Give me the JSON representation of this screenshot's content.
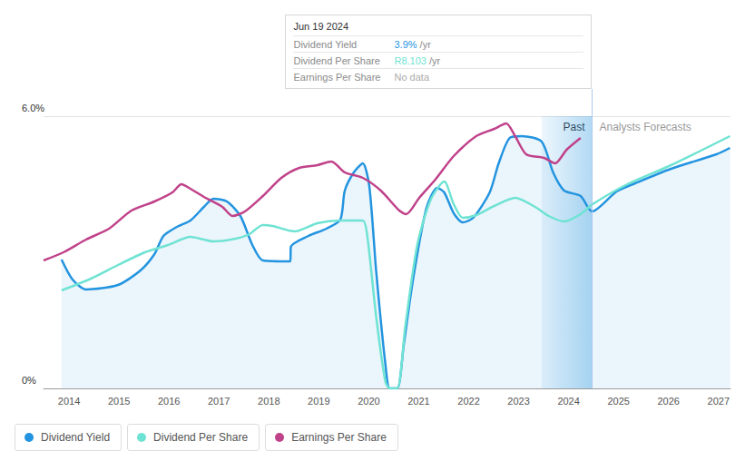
{
  "chart_data": {
    "type": "line",
    "xlim": [
      2013.49,
      2027.24
    ],
    "xticks": [
      2014,
      2015,
      2016,
      2017,
      2018,
      2019,
      2020,
      2021,
      2022,
      2023,
      2024,
      2025,
      2026,
      2027
    ],
    "ylim": [
      0,
      6
    ],
    "yticks": [
      {
        "value": 0,
        "label": "0%"
      },
      {
        "value": 6,
        "label": "6.0%"
      }
    ],
    "y2lim": [
      0,
      12
    ],
    "grid": true,
    "legend": "bottom-left",
    "series": [
      {
        "name": "Dividend Yield",
        "color": "#2394df",
        "x": [
          2013.85,
          2014.07,
          2014.34,
          2014.98,
          2015.43,
          2015.71,
          2015.89,
          2016.16,
          2016.43,
          2016.7,
          2016.89,
          2017.16,
          2017.43,
          2017.67,
          2017.88,
          2018.43,
          2018.44,
          2018.79,
          2019.15,
          2019.43,
          2019.52,
          2019.7,
          2019.88,
          2020.01,
          2020.15,
          2020.33,
          2020.42,
          2020.57,
          2020.7,
          2020.88,
          2021.15,
          2021.37,
          2021.51,
          2021.7,
          2021.88,
          2022.09,
          2022.42,
          2022.6,
          2022.82,
          2023.06,
          2023.46,
          2023.69,
          2023.91,
          2024.24,
          2024.47,
          2024.96,
          2025.33,
          2026.05,
          2026.96,
          2027.23
        ],
        "values": [
          2.84,
          2.4,
          2.18,
          2.28,
          2.6,
          2.96,
          3.36,
          3.56,
          3.7,
          4.0,
          4.18,
          4.12,
          3.8,
          3.16,
          2.82,
          2.8,
          3.12,
          3.36,
          3.52,
          3.72,
          4.36,
          4.76,
          4.96,
          4.46,
          2.56,
          0.56,
          0,
          0,
          0.96,
          2.36,
          3.96,
          4.42,
          4.32,
          3.86,
          3.66,
          3.76,
          4.32,
          4.96,
          5.52,
          5.56,
          5.44,
          4.76,
          4.36,
          4.24,
          3.9,
          4.34,
          4.52,
          4.84,
          5.16,
          5.3
        ]
      },
      {
        "name": "Dividend Per Share",
        "color": "#6fe3d3",
        "axis": "y2",
        "x": [
          2013.85,
          2014.44,
          2014.98,
          2015.52,
          2015.98,
          2016.43,
          2016.89,
          2017.34,
          2017.61,
          2017.88,
          2018.07,
          2018.52,
          2018.97,
          2019.43,
          2019.88,
          2019.97,
          2020.15,
          2020.33,
          2020.42,
          2020.57,
          2020.73,
          2020.97,
          2021.24,
          2021.51,
          2021.7,
          2021.88,
          2022.15,
          2022.51,
          2022.93,
          2023.33,
          2023.6,
          2023.91,
          2024.24,
          2024.47,
          2025.14,
          2026.05,
          2027.23
        ],
        "values": [
          4.32,
          4.84,
          5.44,
          6.0,
          6.32,
          6.68,
          6.48,
          6.6,
          6.8,
          7.2,
          7.16,
          6.92,
          7.28,
          7.4,
          7.4,
          6.72,
          3.12,
          0.32,
          0,
          0,
          2.72,
          6.32,
          8.32,
          9.12,
          8.12,
          7.52,
          7.64,
          8.04,
          8.4,
          8.0,
          7.6,
          7.36,
          7.68,
          8.103,
          8.96,
          9.84,
          11.12
        ]
      },
      {
        "name": "Earnings Per Share",
        "color": "#c0428a",
        "axis": "y2",
        "x": [
          2013.49,
          2013.89,
          2014.34,
          2014.8,
          2015.25,
          2015.71,
          2016.07,
          2016.25,
          2016.43,
          2016.7,
          2017.07,
          2017.27,
          2017.52,
          2017.88,
          2018.25,
          2018.61,
          2018.97,
          2019.25,
          2019.52,
          2019.88,
          2020.24,
          2020.61,
          2020.75,
          2021.01,
          2021.33,
          2021.7,
          2022.15,
          2022.51,
          2022.75,
          2022.93,
          2023.15,
          2023.51,
          2023.73,
          2023.96,
          2024.24
        ],
        "values": [
          5.64,
          6.0,
          6.56,
          7.04,
          7.84,
          8.24,
          8.64,
          9.0,
          8.8,
          8.44,
          8.0,
          7.6,
          7.8,
          8.48,
          9.28,
          9.72,
          9.84,
          10.0,
          9.52,
          9.28,
          8.72,
          7.84,
          7.68,
          8.4,
          9.2,
          10.24,
          11.12,
          11.44,
          11.68,
          11.12,
          10.32,
          10.16,
          9.92,
          10.52,
          11.04
        ]
      }
    ],
    "past_region": {
      "label": "Past",
      "xlim": [
        2023.46,
        2024.47
      ]
    },
    "forecast_label": "Analysts Forecasts",
    "tooltip": {
      "date": "Jun 19 2024",
      "x": 2024.47,
      "rows": [
        {
          "label": "Dividend Yield",
          "value": "3.9%",
          "unit": "/yr"
        },
        {
          "label": "Dividend Per Share",
          "value": "R8.103",
          "unit": "/yr"
        },
        {
          "label": "Earnings Per Share",
          "value": "No data"
        }
      ]
    }
  }
}
